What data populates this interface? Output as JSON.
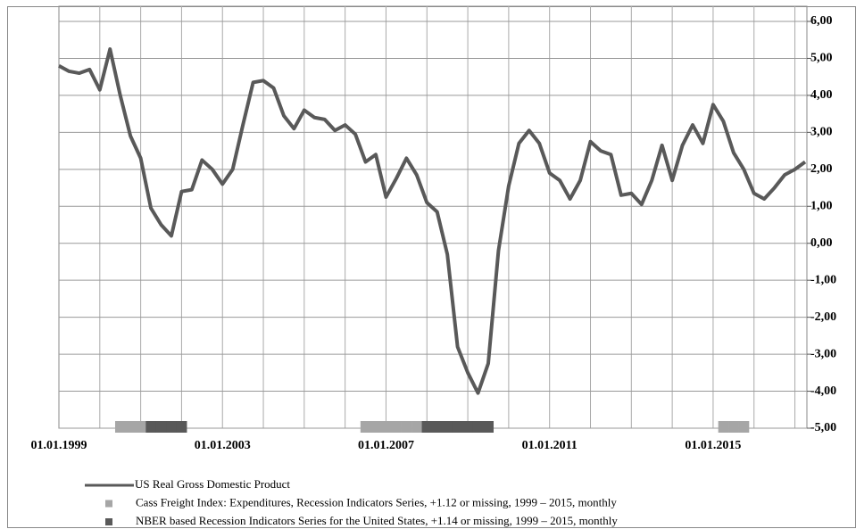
{
  "chart_data": {
    "type": "line",
    "categories": [
      "01.01.1999",
      null,
      null,
      null,
      null,
      null,
      null,
      null,
      null,
      null,
      null,
      null,
      null,
      null,
      null,
      null,
      "01.01.2003",
      null,
      null,
      null,
      null,
      null,
      null,
      null,
      null,
      null,
      null,
      null,
      null,
      null,
      null,
      null,
      "01.01.2007",
      null,
      null,
      null,
      null,
      null,
      null,
      null,
      null,
      null,
      null,
      null,
      null,
      null,
      null,
      null,
      "01.01.2011",
      null,
      null,
      null,
      null,
      null,
      null,
      null,
      null,
      null,
      null,
      null,
      null,
      null,
      null,
      null,
      "01.01.2015",
      null,
      null,
      null,
      null,
      null,
      null,
      null,
      null,
      null
    ],
    "series": [
      {
        "name": "US Real Gross Domestic Product",
        "color": "#595959",
        "type": "line",
        "values": [
          4.8,
          4.65,
          4.6,
          4.7,
          4.15,
          5.25,
          4.0,
          2.9,
          2.3,
          0.95,
          0.5,
          0.2,
          1.4,
          1.45,
          2.25,
          2.0,
          1.6,
          2.0,
          3.2,
          4.35,
          4.4,
          4.2,
          3.45,
          3.1,
          3.6,
          3.4,
          3.35,
          3.05,
          3.2,
          2.95,
          2.2,
          2.4,
          1.25,
          1.75,
          2.3,
          1.85,
          1.1,
          0.85,
          -0.3,
          -2.8,
          -3.5,
          -4.05,
          -3.25,
          -0.2,
          1.55,
          2.7,
          3.05,
          2.7,
          1.9,
          1.7,
          1.2,
          1.7,
          2.75,
          2.5,
          2.4,
          1.3,
          1.35,
          1.05,
          1.7,
          2.65,
          1.7,
          2.65,
          3.2,
          2.7,
          3.75,
          3.3,
          2.45,
          2.0,
          1.35,
          1.2,
          1.5,
          1.85,
          2.0,
          2.2
        ]
      },
      {
        "name": "Cass Freight Index: Expenditures, Recession Indicators Series, +1.12 or missing, 1999 – 2015, monthly",
        "color": "#a6a6a6",
        "type": "bar",
        "values": [
          null,
          null,
          null,
          null,
          null,
          null,
          1.12,
          1.12,
          1.12,
          null,
          null,
          null,
          null,
          null,
          null,
          null,
          null,
          null,
          null,
          null,
          null,
          null,
          null,
          null,
          null,
          null,
          null,
          null,
          null,
          null,
          1.12,
          1.12,
          1.12,
          1.12,
          1.12,
          1.12,
          null,
          null,
          null,
          null,
          null,
          null,
          null,
          null,
          null,
          null,
          null,
          null,
          null,
          null,
          null,
          null,
          null,
          null,
          null,
          null,
          null,
          null,
          null,
          null,
          null,
          null,
          null,
          null,
          null,
          1.12,
          1.12,
          1.12,
          null,
          null,
          null,
          null,
          null,
          null
        ]
      },
      {
        "name": "NBER based Recession Indicators Series for the United States, +1.14 or  missing, 1999 – 2015, monthly",
        "color": "#595959",
        "type": "bar",
        "values": [
          null,
          null,
          null,
          null,
          null,
          null,
          null,
          null,
          null,
          1.14,
          1.14,
          1.14,
          1.14,
          null,
          null,
          null,
          null,
          null,
          null,
          null,
          null,
          null,
          null,
          null,
          null,
          null,
          null,
          null,
          null,
          null,
          null,
          null,
          null,
          null,
          null,
          null,
          1.14,
          1.14,
          1.14,
          1.14,
          1.14,
          1.14,
          1.14,
          null,
          null,
          null,
          null,
          null,
          null,
          null,
          null,
          null,
          null,
          null,
          null,
          null,
          null,
          null,
          null,
          null,
          null,
          null,
          null,
          null,
          null,
          null,
          null,
          null,
          null,
          null,
          null,
          null,
          null,
          null
        ]
      }
    ],
    "ylim": [
      -5,
      6
    ],
    "yticks": [
      {
        "value": -5,
        "label": "-5,00"
      },
      {
        "value": -4,
        "label": "-4,00"
      },
      {
        "value": -3,
        "label": "-3,00"
      },
      {
        "value": -2,
        "label": "-2,00"
      },
      {
        "value": -1,
        "label": "-1,00"
      },
      {
        "value": 0,
        "label": "0,00"
      },
      {
        "value": 1,
        "label": "1,00"
      },
      {
        "value": 2,
        "label": "2,00"
      },
      {
        "value": 3,
        "label": "3,00"
      },
      {
        "value": 4,
        "label": "4,00"
      },
      {
        "value": 5,
        "label": "5,00"
      },
      {
        "value": 6,
        "label": "6,00"
      }
    ],
    "grid": true,
    "legend": "bottom"
  }
}
